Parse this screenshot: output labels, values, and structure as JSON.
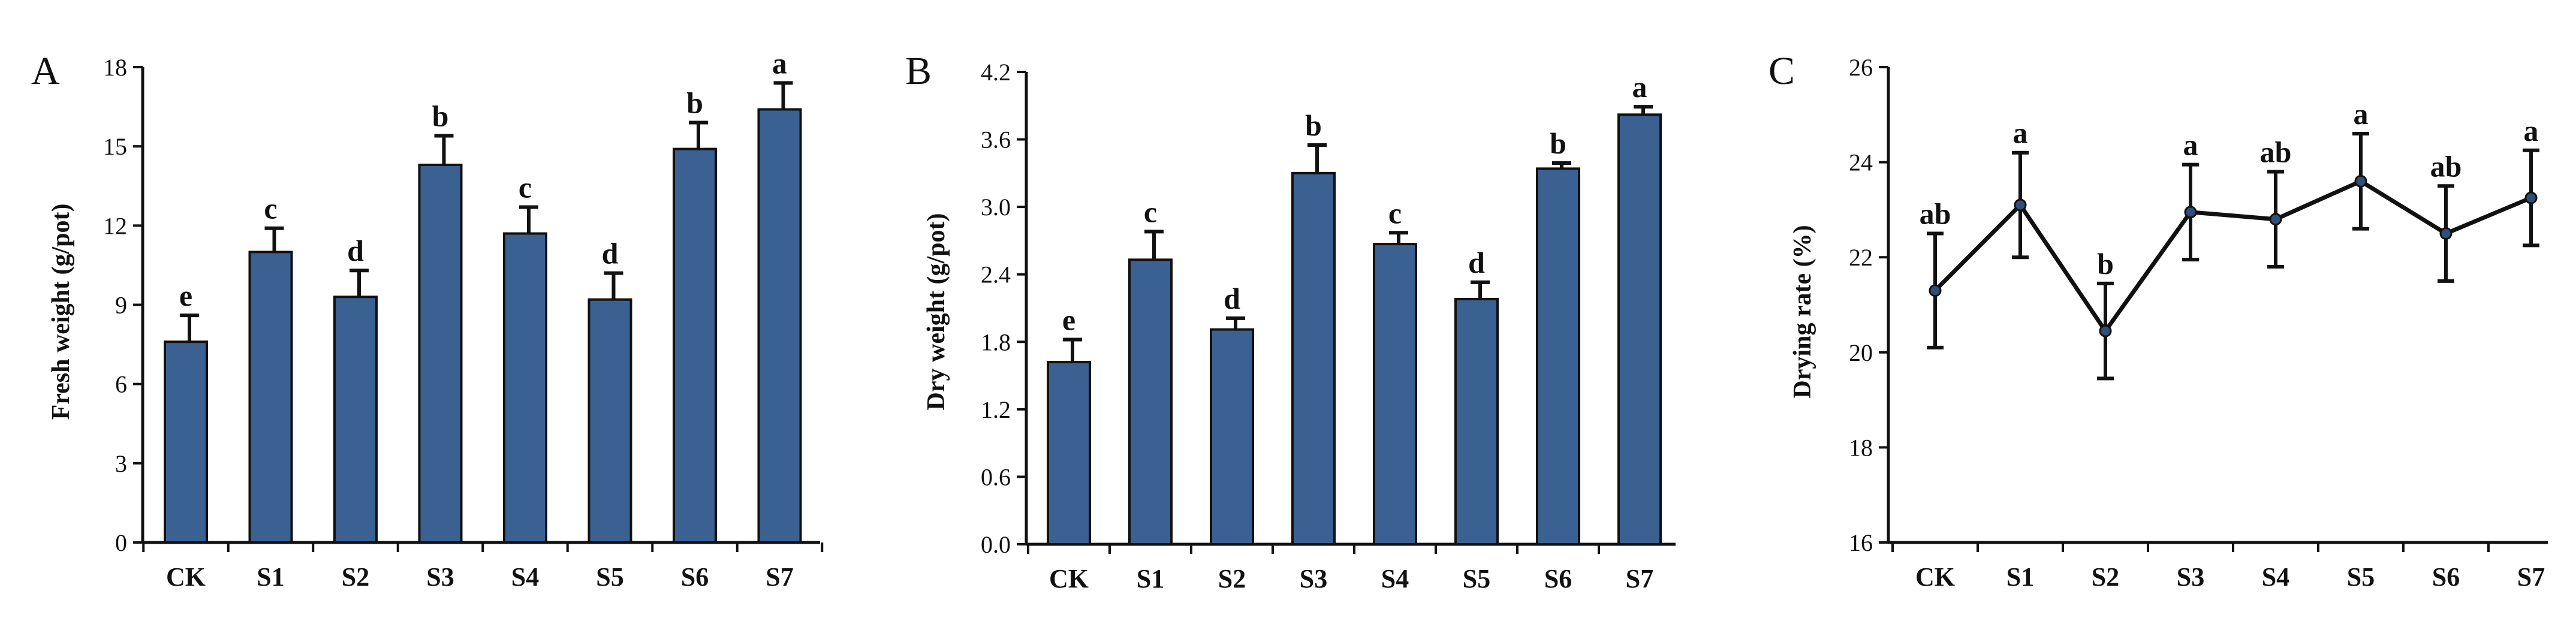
{
  "colors": {
    "bar": "#3a6192",
    "point": "#2f4f78",
    "ink": "#111111"
  },
  "chart_data": [
    {
      "type": "bar",
      "panel": "A",
      "title": "",
      "ylabel": "Fresh weight (g/pot)",
      "xlabel": "",
      "ylim": [
        0,
        18
      ],
      "yticks": [
        "0",
        "3",
        "6",
        "9",
        "12",
        "15",
        "18"
      ],
      "categories": [
        "CK",
        "S1",
        "S2",
        "S3",
        "S4",
        "S5",
        "S6",
        "S7"
      ],
      "values": [
        7.6,
        11.0,
        9.3,
        14.3,
        11.7,
        9.2,
        14.9,
        16.4
      ],
      "errors": [
        1.0,
        0.9,
        1.0,
        1.1,
        1.0,
        1.0,
        1.0,
        1.0
      ],
      "significance": [
        "e",
        "c",
        "d",
        "b",
        "c",
        "d",
        "b",
        "a"
      ],
      "grid": false
    },
    {
      "type": "bar",
      "panel": "B",
      "title": "",
      "ylabel": "Dry weight (g/pot)",
      "xlabel": "",
      "ylim": [
        0,
        4.2
      ],
      "yticks": [
        "0.0",
        "0.6",
        "1.2",
        "1.8",
        "2.4",
        "3.0",
        "3.6",
        "4.2"
      ],
      "categories": [
        "CK",
        "S1",
        "S2",
        "S3",
        "S4",
        "S5",
        "S6",
        "S7"
      ],
      "values": [
        1.62,
        2.53,
        1.91,
        3.3,
        2.67,
        2.18,
        3.34,
        3.82
      ],
      "errors": [
        0.2,
        0.25,
        0.1,
        0.25,
        0.1,
        0.15,
        0.05,
        0.07
      ],
      "significance": [
        "e",
        "c",
        "d",
        "b",
        "c",
        "d",
        "b",
        "a"
      ],
      "grid": false
    },
    {
      "type": "line",
      "panel": "C",
      "title": "",
      "ylabel": "Drying rate (%)",
      "xlabel": "",
      "ylim": [
        16,
        26
      ],
      "yticks": [
        "16",
        "18",
        "20",
        "22",
        "24",
        "26"
      ],
      "categories": [
        "CK",
        "S1",
        "S2",
        "S3",
        "S4",
        "S5",
        "S6",
        "S7"
      ],
      "values": [
        21.3,
        23.1,
        20.45,
        22.95,
        22.8,
        23.6,
        22.5,
        23.25
      ],
      "errors": [
        1.2,
        1.1,
        1.0,
        1.0,
        1.0,
        1.0,
        1.0,
        1.0
      ],
      "significance": [
        "ab",
        "a",
        "b",
        "a",
        "ab",
        "a",
        "ab",
        "a"
      ],
      "grid": false
    }
  ]
}
